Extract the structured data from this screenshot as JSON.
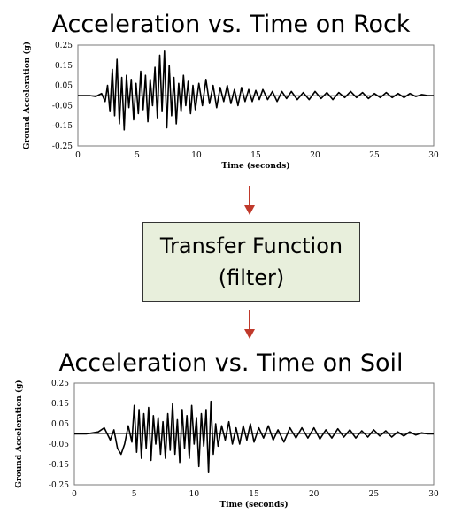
{
  "diagram": {
    "top_title": "Acceleration vs. Time on Rock",
    "bottom_title": "Acceleration vs. Time on Soil",
    "filter_box": {
      "line1": "Transfer Function",
      "line2": "(filter)"
    },
    "arrow_color": "#c0392b",
    "box_fill": "#e8efdc"
  },
  "chart_data": [
    {
      "type": "line",
      "title": "Acceleration vs. Time on Rock",
      "xlabel": "Time (seconds)",
      "ylabel": "Ground Acceleration (g)",
      "xlim": [
        0,
        30
      ],
      "ylim": [
        -0.25,
        0.25
      ],
      "xticks": [
        "0",
        "5",
        "10",
        "15",
        "20",
        "25",
        "30"
      ],
      "yticks": [
        "0.25",
        "0.15",
        "0.05",
        "-0.05",
        "-0.15",
        "-0.25"
      ],
      "series": [
        {
          "x": [
            0,
            1.0,
            1.5,
            2.0,
            2.3,
            2.5,
            2.7,
            2.9,
            3.1,
            3.3,
            3.5,
            3.7,
            3.9,
            4.1,
            4.3,
            4.5,
            4.7,
            4.9,
            5.1,
            5.3,
            5.5,
            5.7,
            5.9,
            6.1,
            6.3,
            6.5,
            6.7,
            6.9,
            7.1,
            7.3,
            7.5,
            7.7,
            7.9,
            8.1,
            8.3,
            8.5,
            8.7,
            8.9,
            9.1,
            9.3,
            9.5,
            9.7,
            9.9,
            10.2,
            10.5,
            10.8,
            11.1,
            11.4,
            11.7,
            12.0,
            12.3,
            12.6,
            12.9,
            13.2,
            13.5,
            13.8,
            14.1,
            14.4,
            14.7,
            15.0,
            15.3,
            15.6,
            16.0,
            16.4,
            16.8,
            17.2,
            17.6,
            18.0,
            18.5,
            19.0,
            19.5,
            20.0,
            20.5,
            21.0,
            21.5,
            22.0,
            22.5,
            23.0,
            23.5,
            24.0,
            24.5,
            25.0,
            25.5,
            26.0,
            26.5,
            27.0,
            27.5,
            28.0,
            28.5,
            29.0,
            29.5,
            30.0
          ],
          "y": [
            0.0,
            0.0,
            -0.005,
            0.01,
            -0.03,
            0.05,
            -0.08,
            0.13,
            -0.1,
            0.18,
            -0.14,
            0.09,
            -0.17,
            0.1,
            -0.06,
            0.08,
            -0.12,
            0.06,
            -0.09,
            0.12,
            -0.07,
            0.1,
            -0.13,
            0.08,
            -0.05,
            0.14,
            -0.11,
            0.2,
            -0.08,
            0.22,
            -0.16,
            0.15,
            -0.1,
            0.09,
            -0.14,
            0.06,
            -0.08,
            0.1,
            -0.05,
            0.07,
            -0.09,
            0.05,
            -0.07,
            0.06,
            -0.05,
            0.08,
            -0.04,
            0.05,
            -0.06,
            0.04,
            -0.03,
            0.05,
            -0.04,
            0.03,
            -0.05,
            0.04,
            -0.03,
            0.03,
            -0.03,
            0.025,
            -0.02,
            0.03,
            -0.02,
            0.02,
            -0.03,
            0.02,
            -0.015,
            0.02,
            -0.02,
            0.015,
            -0.02,
            0.02,
            -0.015,
            0.015,
            -0.02,
            0.015,
            -0.01,
            0.02,
            -0.01,
            0.015,
            -0.015,
            0.01,
            -0.01,
            0.015,
            -0.01,
            0.01,
            -0.01,
            0.01,
            -0.005,
            0.005,
            0.0,
            0.0
          ]
        }
      ]
    },
    {
      "type": "line",
      "title": "Acceleration vs. Time on Soil",
      "xlabel": "Time (seconds)",
      "ylabel": "Ground Acceleration (g)",
      "xlim": [
        0,
        30
      ],
      "ylim": [
        -0.25,
        0.25
      ],
      "xticks": [
        "0",
        "5",
        "10",
        "15",
        "20",
        "25",
        "30"
      ],
      "yticks": [
        "0.25",
        "0.15",
        "0.05",
        "-0.05",
        "-0.15",
        "-0.25"
      ],
      "series": [
        {
          "x": [
            0,
            1.0,
            2.0,
            2.5,
            3.0,
            3.3,
            3.6,
            3.9,
            4.2,
            4.5,
            4.8,
            5.0,
            5.2,
            5.4,
            5.6,
            5.8,
            6.0,
            6.2,
            6.4,
            6.6,
            6.8,
            7.0,
            7.2,
            7.4,
            7.6,
            7.8,
            8.0,
            8.2,
            8.4,
            8.6,
            8.8,
            9.0,
            9.2,
            9.4,
            9.6,
            9.8,
            10.0,
            10.2,
            10.4,
            10.6,
            10.8,
            11.0,
            11.2,
            11.4,
            11.6,
            11.8,
            12.0,
            12.3,
            12.6,
            12.9,
            13.2,
            13.5,
            13.8,
            14.1,
            14.4,
            14.7,
            15.0,
            15.4,
            15.8,
            16.2,
            16.6,
            17.0,
            17.5,
            18.0,
            18.5,
            19.0,
            19.5,
            20.0,
            20.5,
            21.0,
            21.5,
            22.0,
            22.5,
            23.0,
            23.5,
            24.0,
            24.5,
            25.0,
            25.5,
            26.0,
            26.5,
            27.0,
            27.5,
            28.0,
            28.5,
            29.0,
            29.5,
            30.0
          ],
          "y": [
            0.0,
            0.0,
            0.01,
            0.03,
            -0.03,
            0.02,
            -0.07,
            -0.1,
            -0.05,
            0.04,
            -0.04,
            0.14,
            -0.09,
            0.12,
            -0.12,
            0.1,
            -0.07,
            0.13,
            -0.13,
            0.09,
            -0.05,
            0.08,
            -0.1,
            0.06,
            -0.12,
            0.1,
            -0.08,
            0.15,
            -0.1,
            0.07,
            -0.14,
            0.12,
            -0.07,
            0.09,
            -0.12,
            0.14,
            -0.05,
            0.08,
            -0.16,
            0.1,
            -0.06,
            0.12,
            -0.19,
            0.16,
            -0.1,
            0.05,
            -0.06,
            0.04,
            -0.03,
            0.06,
            -0.05,
            0.03,
            -0.05,
            0.04,
            -0.03,
            0.05,
            -0.04,
            0.03,
            -0.02,
            0.04,
            -0.03,
            0.02,
            -0.04,
            0.03,
            -0.02,
            0.03,
            -0.02,
            0.03,
            -0.025,
            0.02,
            -0.02,
            0.025,
            -0.015,
            0.02,
            -0.02,
            0.015,
            -0.015,
            0.02,
            -0.01,
            0.015,
            -0.015,
            0.01,
            -0.01,
            0.01,
            -0.005,
            0.005,
            0.0,
            0.0
          ]
        }
      ]
    }
  ]
}
